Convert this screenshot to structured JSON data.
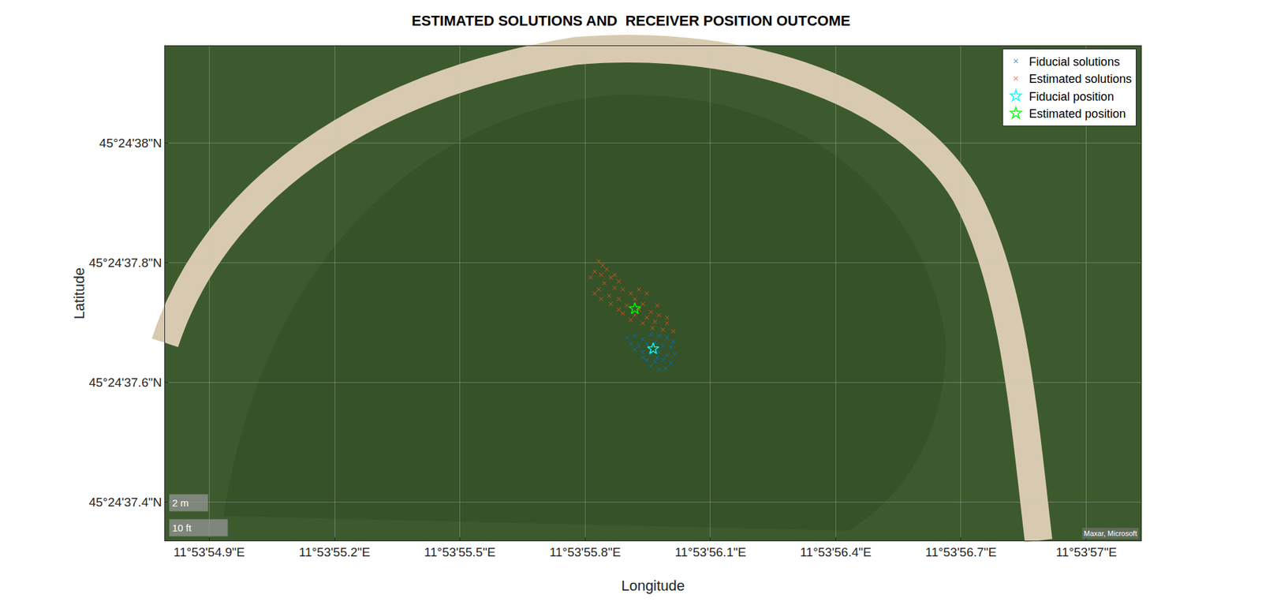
{
  "chart_data": {
    "type": "scatter",
    "title": "ESTIMATED SOLUTIONS AND  RECEIVER POSITION OUTCOME",
    "x_label": "Longitude",
    "y_label": "Latitude",
    "xlim": [
      11.8985539,
      11.8992031
    ],
    "ylim": [
      45.4103711,
      45.4106006
    ],
    "xticks": [
      {
        "value": 11.8985833,
        "label": "11°53'54.9\"E"
      },
      {
        "value": 11.8986667,
        "label": "11°53'55.2\"E"
      },
      {
        "value": 11.89875,
        "label": "11°53'55.5\"E"
      },
      {
        "value": 11.8988333,
        "label": "11°53'55.8\"E"
      },
      {
        "value": 11.8989167,
        "label": "11°53'56.1\"E"
      },
      {
        "value": 11.899,
        "label": "11°53'56.4\"E"
      },
      {
        "value": 11.8990833,
        "label": "11°53'56.7\"E"
      },
      {
        "value": 11.8991667,
        "label": "11°53'57\"E"
      }
    ],
    "yticks": [
      {
        "value": 45.4103889,
        "label": "45°24'37.4\"N"
      },
      {
        "value": 45.4104444,
        "label": "45°24'37.6\"N"
      },
      {
        "value": 45.4105,
        "label": "45°24'37.8\"N"
      },
      {
        "value": 45.4105556,
        "label": "45°24'38\"N"
      }
    ],
    "grid": true,
    "legend": "upper right",
    "annotations": [
      "2 m",
      "10 ft",
      "Maxar, Microsoft"
    ],
    "series": [
      {
        "name": "Fiducial solutions",
        "color": "#0072bd",
        "marker": "x",
        "x": [
          11.8988611,
          11.8988664,
          11.8988717,
          11.8988771,
          11.8988824,
          11.8988878,
          11.898892,
          11.8988637,
          11.8988691,
          11.8988744,
          11.8988798,
          11.8988851,
          11.8988904,
          11.8988717,
          11.8988771,
          11.8988824,
          11.8988878,
          11.8988931,
          11.8988744,
          11.8988798,
          11.8988851,
          11.8988904,
          11.8988771,
          11.8988824,
          11.8988867,
          11.8988664,
          11.8988814,
          11.8988717
        ],
        "y": [
          45.4104653,
          45.410466,
          45.4104645,
          45.4104668,
          45.410466,
          45.4104653,
          45.4104634,
          45.4104623,
          45.4104616,
          45.4104623,
          45.410463,
          45.4104616,
          45.4104608,
          45.4104586,
          45.4104578,
          45.4104586,
          45.4104571,
          45.4104578,
          45.4104548,
          45.4104541,
          45.4104548,
          45.4104534,
          45.4104519,
          45.4104504,
          45.4104511,
          45.4104597,
          45.410456,
          45.410456
        ]
      },
      {
        "name": "Estimated solutions",
        "color": "#d95319",
        "marker": "x",
        "x": [
          11.8988424,
          11.898845,
          11.8988397,
          11.8988477,
          11.898837,
          11.898844,
          11.8988504,
          11.8988557,
          11.8988461,
          11.898853,
          11.8988424,
          11.8988584,
          11.8988637,
          11.8988493,
          11.8988557,
          11.8988664,
          11.8988717,
          11.8988611,
          11.8988504,
          11.8988691,
          11.8988771,
          11.8988664,
          11.8988744,
          11.8988824,
          11.8988584,
          11.8988798,
          11.8988878,
          11.8988717,
          11.8988851,
          11.898892,
          11.8988782,
          11.8988637,
          11.8988557,
          11.898844,
          11.8988397,
          11.8988744,
          11.8988814,
          11.8988878,
          11.8988691,
          11.898853
        ],
        "y": [
          45.4105007,
          45.4104988,
          45.4104959,
          45.410497,
          45.4104932,
          45.4104944,
          45.4104932,
          45.4104914,
          45.4104906,
          45.4104884,
          45.4104877,
          45.4104877,
          45.4104858,
          45.4104847,
          45.4104832,
          45.4104832,
          45.4104809,
          45.4104802,
          45.4104809,
          45.4104783,
          45.4104772,
          45.4104757,
          45.4104746,
          45.4104757,
          45.4104765,
          45.4104727,
          45.410472,
          45.410472,
          45.410469,
          45.4104683,
          45.4104697,
          45.4104735,
          45.4104783,
          45.4104832,
          45.4104858,
          45.4104858,
          45.4104802,
          45.4104746,
          45.4104877,
          45.4104944
        ]
      },
      {
        "name": "Fiducial position",
        "color": "#00ffff",
        "marker": "star",
        "x": [
          11.8988786
        ],
        "y": [
          45.4104601
        ]
      },
      {
        "name": "Estimated position",
        "color": "#00ff00",
        "marker": "star",
        "x": [
          11.8988664
        ],
        "y": [
          45.4104787
        ]
      }
    ]
  }
}
